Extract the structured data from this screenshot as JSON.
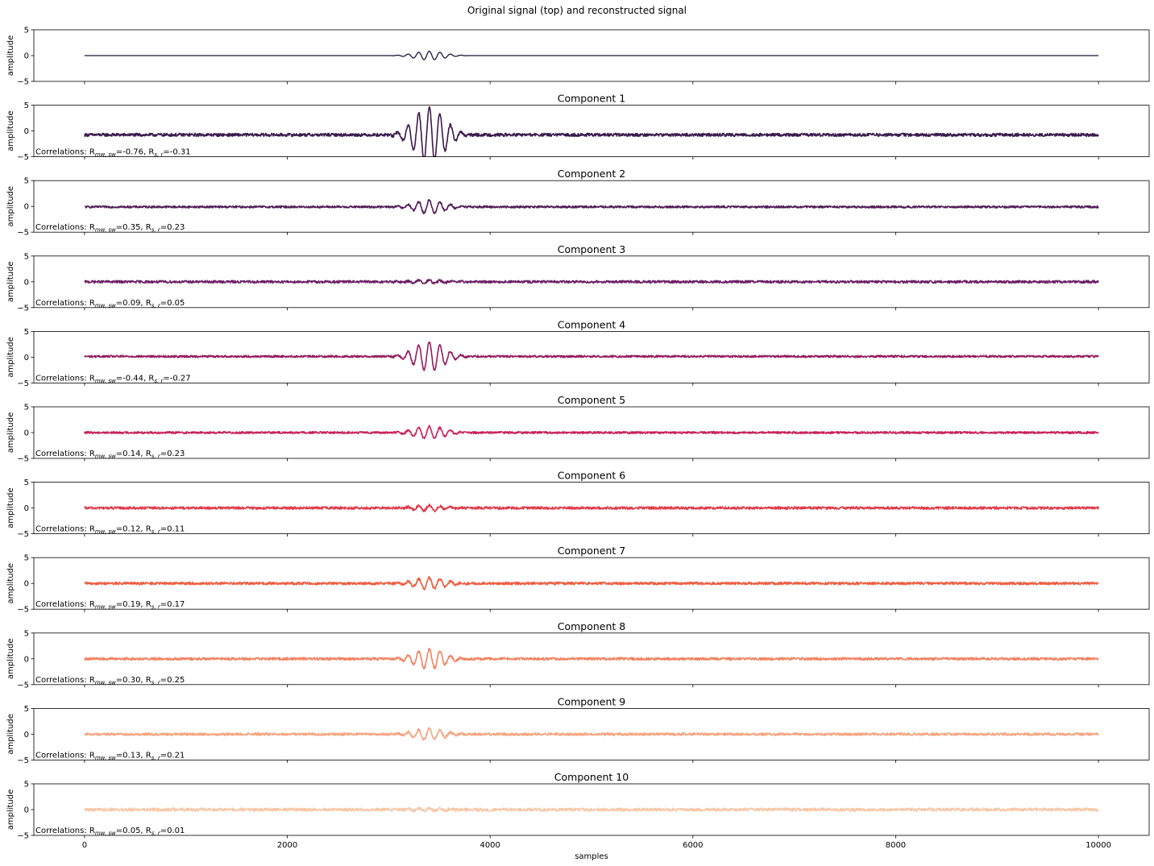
{
  "chart_data": {
    "type": "line",
    "title": "Original signal (top) and reconstructed signal",
    "xlabel": "samples",
    "ylabel": "amplitude",
    "xlim": [
      -500,
      10500
    ],
    "ylim": [
      -5,
      5
    ],
    "x_ticks": [
      0,
      2000,
      4000,
      6000,
      8000,
      10000
    ],
    "y_ticks": [
      5,
      0,
      -5
    ],
    "n_samples": 10000,
    "correlation_prefix": "Correlations: ",
    "r_label": "R",
    "r_mw_sub": "mw, sw",
    "r_s_sub": "s, r",
    "original": {
      "color": "#1c1433",
      "baseline": 0,
      "burst_amplitude": 0.85,
      "burst_center": 3400,
      "burst_start": 3100,
      "burst_end": 3700,
      "noise": 0
    },
    "components": [
      {
        "title": "Component 1",
        "color": "#3a1a4c",
        "baseline": -0.75,
        "burst_amplitude": 5.5,
        "noise": 0.3,
        "r_mw": "-0.76",
        "r_s": "-0.31"
      },
      {
        "title": "Component 2",
        "color": "#511c58",
        "baseline": -0.1,
        "burst_amplitude": 1.3,
        "noise": 0.2,
        "r_mw": "0.35",
        "r_s": "0.23"
      },
      {
        "title": "Component 3",
        "color": "#6d1f66",
        "baseline": 0.0,
        "burst_amplitude": 0.35,
        "noise": 0.25,
        "r_mw": "0.09",
        "r_s": "0.05"
      },
      {
        "title": "Component 4",
        "color": "#951b5e",
        "baseline": 0.15,
        "burst_amplitude": 2.8,
        "noise": 0.2,
        "r_mw": "-0.44",
        "r_s": "-0.27"
      },
      {
        "title": "Component 5",
        "color": "#c8205a",
        "baseline": 0.0,
        "burst_amplitude": 1.2,
        "noise": 0.2,
        "r_mw": "0.14",
        "r_s": "0.23"
      },
      {
        "title": "Component 6",
        "color": "#e03a48",
        "baseline": 0.0,
        "burst_amplitude": 0.55,
        "noise": 0.25,
        "r_mw": "0.12",
        "r_s": "0.11"
      },
      {
        "title": "Component 7",
        "color": "#ee5c3f",
        "baseline": 0.0,
        "burst_amplitude": 1.1,
        "noise": 0.25,
        "r_mw": "0.19",
        "r_s": "0.17"
      },
      {
        "title": "Component 8",
        "color": "#f2825f",
        "baseline": 0.0,
        "burst_amplitude": 1.9,
        "noise": 0.25,
        "r_mw": "0.30",
        "r_s": "0.25"
      },
      {
        "title": "Component 9",
        "color": "#f5a47f",
        "baseline": 0.0,
        "burst_amplitude": 1.1,
        "noise": 0.25,
        "r_mw": "0.13",
        "r_s": "0.21"
      },
      {
        "title": "Component 10",
        "color": "#f7c7a6",
        "baseline": 0.0,
        "burst_amplitude": 0.25,
        "noise": 0.3,
        "r_mw": "0.05",
        "r_s": "0.01"
      }
    ]
  }
}
